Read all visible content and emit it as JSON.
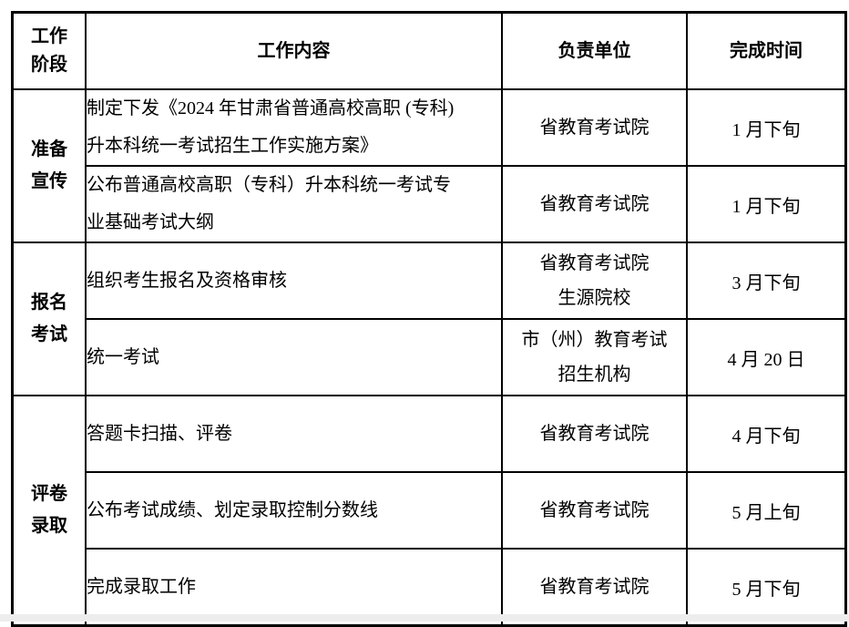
{
  "page": {
    "background": "#ffffff",
    "bottom_strip_color": "#ededed",
    "text_color": "#000000",
    "border_color": "#000000"
  },
  "table": {
    "header": {
      "phase": "工作\n阶段",
      "content": "工作内容",
      "unit": "负责单位",
      "time": "完成时间"
    },
    "groups": [
      {
        "phase": "准备\n宣传",
        "rows": [
          {
            "content": "制定下发《2024 年甘肃省普通高校高职 (专科)\n升本科统一考试招生工作实施方案》",
            "unit": "省教育考试院",
            "time": "1 月下旬"
          },
          {
            "content": "公布普通高校高职（专科）升本科统一考试专\n业基础考试大纲",
            "unit": "省教育考试院",
            "time": "1 月下旬"
          }
        ]
      },
      {
        "phase": "报名\n考试",
        "rows": [
          {
            "content": "组织考生报名及资格审核",
            "unit": "省教育考试院\n生源院校",
            "time": "3 月下旬"
          },
          {
            "content": "统一考试",
            "unit": "市（州）教育考试\n招生机构",
            "time": "4 月 20 日"
          }
        ]
      },
      {
        "phase": "评卷\n录取",
        "rows": [
          {
            "content": "答题卡扫描、评卷",
            "unit": "省教育考试院",
            "time": "4 月下旬"
          },
          {
            "content": "公布考试成绩、划定录取控制分数线",
            "unit": "省教育考试院",
            "time": "5 月上旬"
          },
          {
            "content": "完成录取工作",
            "unit": "省教育考试院",
            "time": "5 月下旬"
          }
        ]
      }
    ]
  }
}
